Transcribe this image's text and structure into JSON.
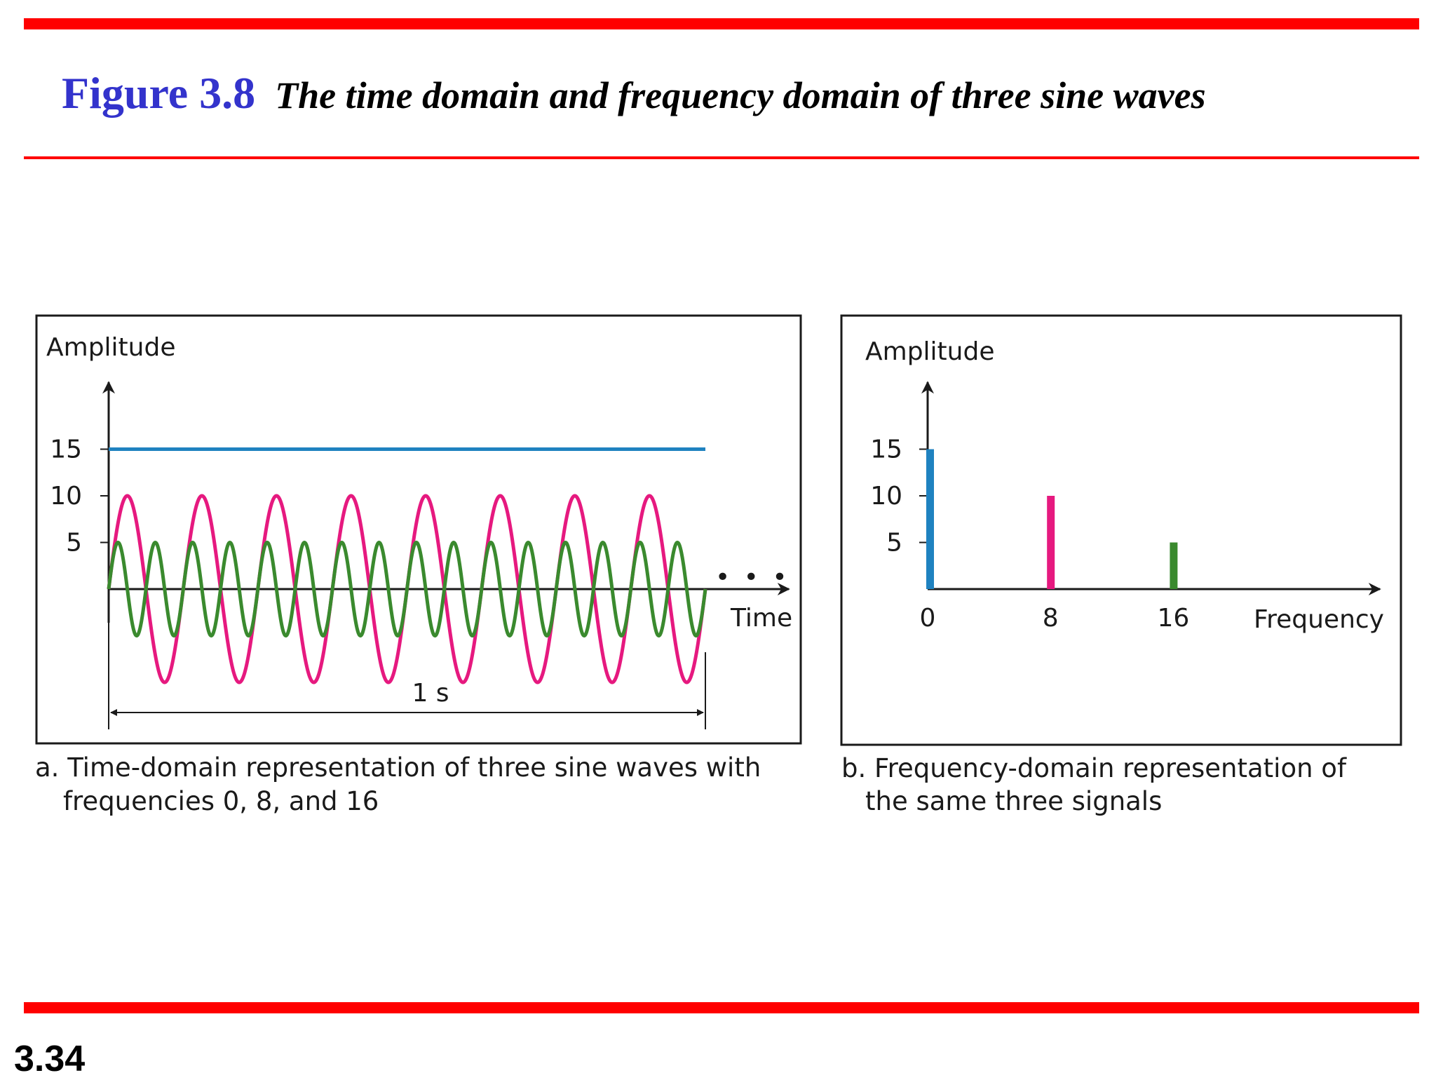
{
  "header": {
    "figure_label": "Figure 3.8",
    "caption": "The time domain and frequency domain of three sine waves"
  },
  "footer": {
    "page_number": "3.34"
  },
  "colors": {
    "rules": "#ff0000",
    "figure_label": "#3333cc",
    "freq_0": "#1f82c0",
    "freq_8": "#e6197f",
    "freq_16": "#3a8a2e"
  },
  "panel_a": {
    "y_axis_label": "Amplitude",
    "x_axis_label": "Time",
    "ellipsis": "• • •",
    "duration_label": "1 s",
    "caption_line1": "a. Time-domain representation of three sine waves with",
    "caption_line2": "frequencies 0, 8, and 16",
    "y_ticks": [
      "15",
      "10",
      "5"
    ]
  },
  "panel_b": {
    "y_axis_label": "Amplitude",
    "x_axis_label": "Frequency",
    "caption_line1": "b. Frequency-domain representation of",
    "caption_line2": "the same three signals",
    "y_ticks": [
      "15",
      "10",
      "5"
    ],
    "x_ticks": [
      "0",
      "8",
      "16"
    ]
  },
  "chart_data": [
    {
      "type": "line",
      "x_range": [
        0,
        1
      ],
      "ylim": [
        -10,
        15
      ],
      "series": [
        {
          "frequency": 0,
          "amplitude": 15
        },
        {
          "frequency": 8,
          "amplitude": 10
        },
        {
          "frequency": 16,
          "amplitude": 5
        }
      ]
    },
    {
      "type": "bar",
      "categories": [
        "0",
        "8",
        "16"
      ],
      "values": [
        15,
        10,
        5
      ],
      "ylim": [
        0,
        15
      ]
    }
  ]
}
